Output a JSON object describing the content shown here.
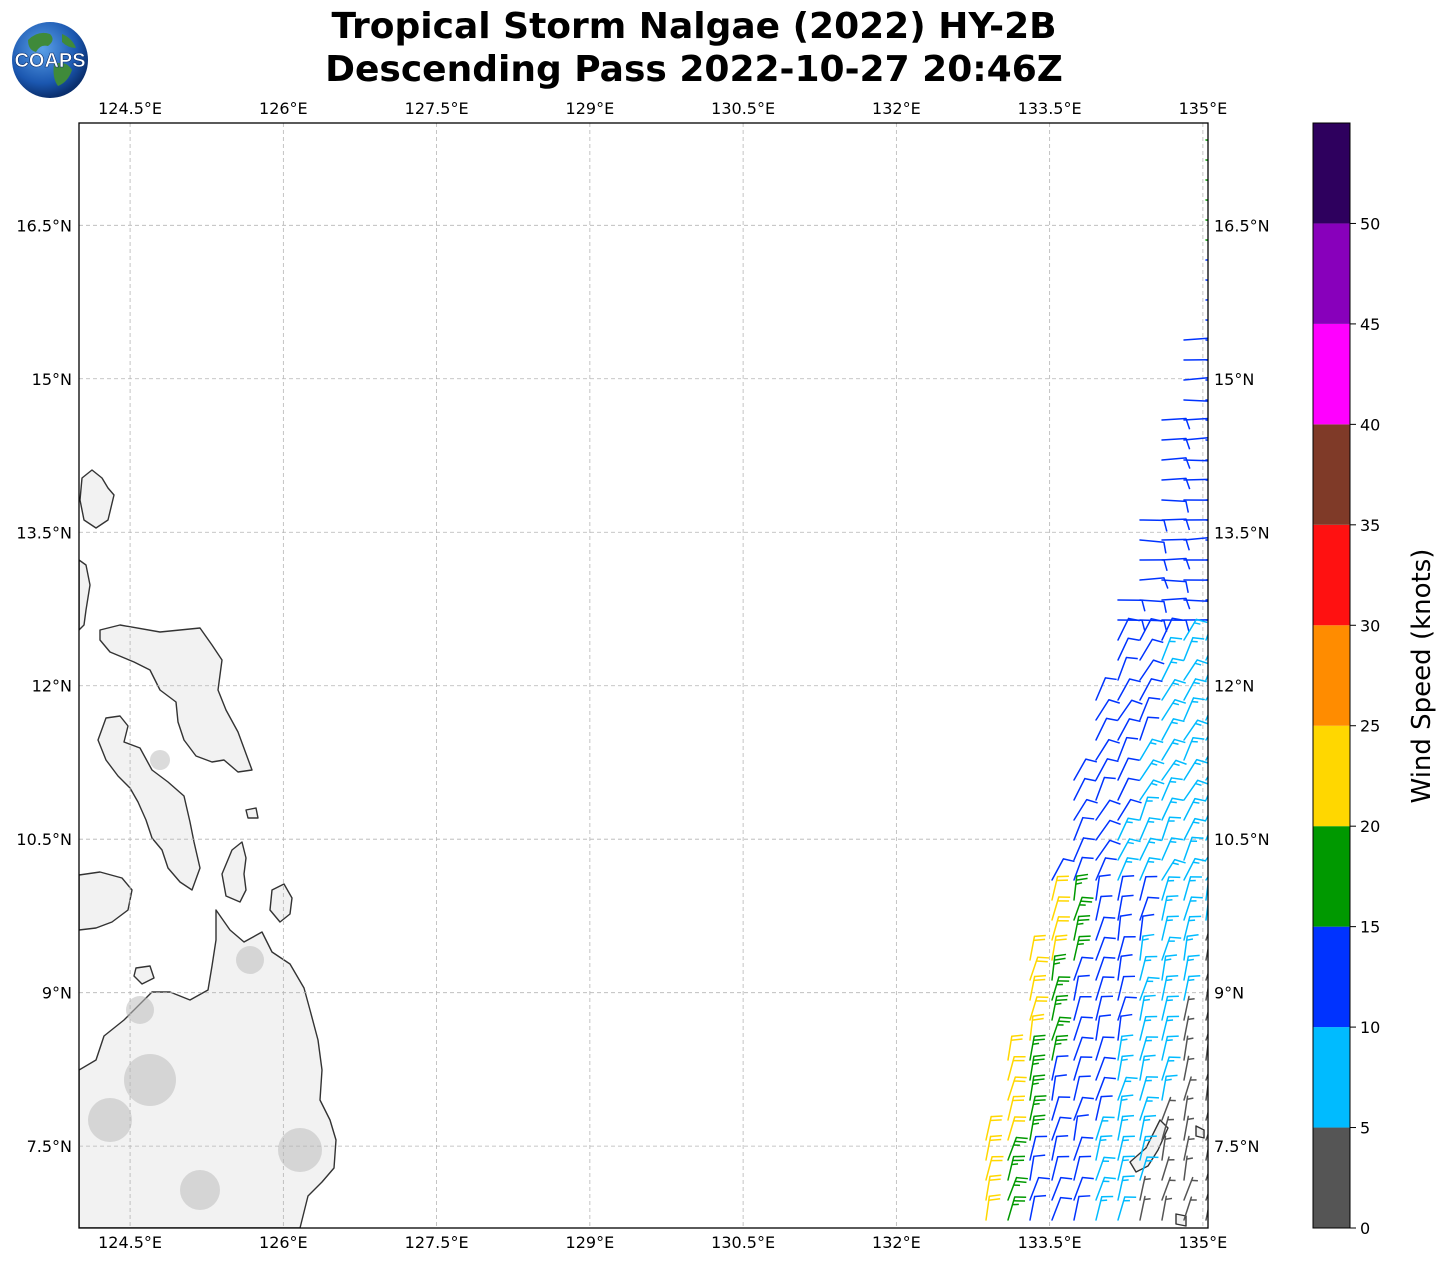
{
  "title": {
    "line1": "Tropical Storm Nalgae (2022) HY-2B",
    "line2": "Descending Pass 2022-10-27 20:46Z"
  },
  "logo": {
    "text": "COAPS",
    "icon": "globe-logo-icon"
  },
  "map": {
    "lon_range": [
      124.0,
      135.05
    ],
    "lat_range": [
      6.7,
      17.5
    ],
    "lon_ticks": [
      {
        "value": 124.5,
        "label": "124.5°E"
      },
      {
        "value": 126.0,
        "label": "126°E"
      },
      {
        "value": 127.5,
        "label": "127.5°E"
      },
      {
        "value": 129.0,
        "label": "129°E"
      },
      {
        "value": 130.5,
        "label": "130.5°E"
      },
      {
        "value": 132.0,
        "label": "132°E"
      },
      {
        "value": 133.5,
        "label": "133.5°E"
      },
      {
        "value": 135.0,
        "label": "135°E"
      }
    ],
    "lat_ticks": [
      {
        "value": 16.5,
        "label": "16.5°N"
      },
      {
        "value": 15.0,
        "label": "15°N"
      },
      {
        "value": 13.5,
        "label": "13.5°N"
      },
      {
        "value": 12.0,
        "label": "12°N"
      },
      {
        "value": 10.5,
        "label": "10.5°N"
      },
      {
        "value": 9.0,
        "label": "9°N"
      },
      {
        "value": 7.5,
        "label": "7.5°N"
      }
    ],
    "gridlines": true,
    "land_color": "#f2f2f2",
    "coast_color": "#333333"
  },
  "colorbar": {
    "label": "Wind Speed (knots)",
    "range": [
      0,
      55
    ],
    "ticks": [
      {
        "value": 0,
        "label": "0"
      },
      {
        "value": 5,
        "label": "5"
      },
      {
        "value": 10,
        "label": "10"
      },
      {
        "value": 15,
        "label": "15"
      },
      {
        "value": 20,
        "label": "20"
      },
      {
        "value": 25,
        "label": "25"
      },
      {
        "value": 30,
        "label": "30"
      },
      {
        "value": 35,
        "label": "35"
      },
      {
        "value": 40,
        "label": "40"
      },
      {
        "value": 45,
        "label": "45"
      },
      {
        "value": 50,
        "label": "50"
      }
    ],
    "bins": [
      {
        "min": 0,
        "max": 5,
        "color": "#555555"
      },
      {
        "min": 5,
        "max": 10,
        "color": "#00bbff"
      },
      {
        "min": 10,
        "max": 15,
        "color": "#0033ff"
      },
      {
        "min": 15,
        "max": 20,
        "color": "#009900"
      },
      {
        "min": 20,
        "max": 25,
        "color": "#ffd700"
      },
      {
        "min": 25,
        "max": 30,
        "color": "#ff8c00"
      },
      {
        "min": 30,
        "max": 35,
        "color": "#ff1111"
      },
      {
        "min": 35,
        "max": 40,
        "color": "#7f3a28"
      },
      {
        "min": 40,
        "max": 45,
        "color": "#ff00ff"
      },
      {
        "min": 45,
        "max": 50,
        "color": "#8800bb"
      },
      {
        "min": 50,
        "max": 55,
        "color": "#2e005e"
      }
    ]
  }
}
